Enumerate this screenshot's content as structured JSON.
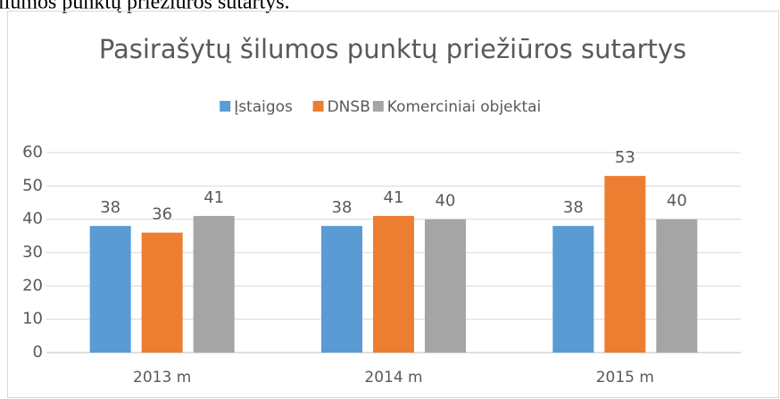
{
  "caption": "ilumos punktų priežiūros sutartys.",
  "chart_data": {
    "type": "bar",
    "title": "Pasirašytų šilumos punktų priežiūros sutartys",
    "categories": [
      "2013 m",
      "2014 m",
      "2015 m"
    ],
    "series": [
      {
        "name": "Įstaigos",
        "color": "#5b9bd5",
        "values": [
          38,
          38,
          38
        ]
      },
      {
        "name": "DNSB",
        "color": "#ed7d31",
        "values": [
          36,
          41,
          53
        ]
      },
      {
        "name": "Komerciniai objektai",
        "color": "#a5a5a5",
        "values": [
          41,
          40,
          40
        ]
      }
    ],
    "ylim": [
      0,
      60
    ],
    "yticks": [
      0,
      10,
      20,
      30,
      40,
      50,
      60
    ],
    "grid": true,
    "legend": "top"
  }
}
